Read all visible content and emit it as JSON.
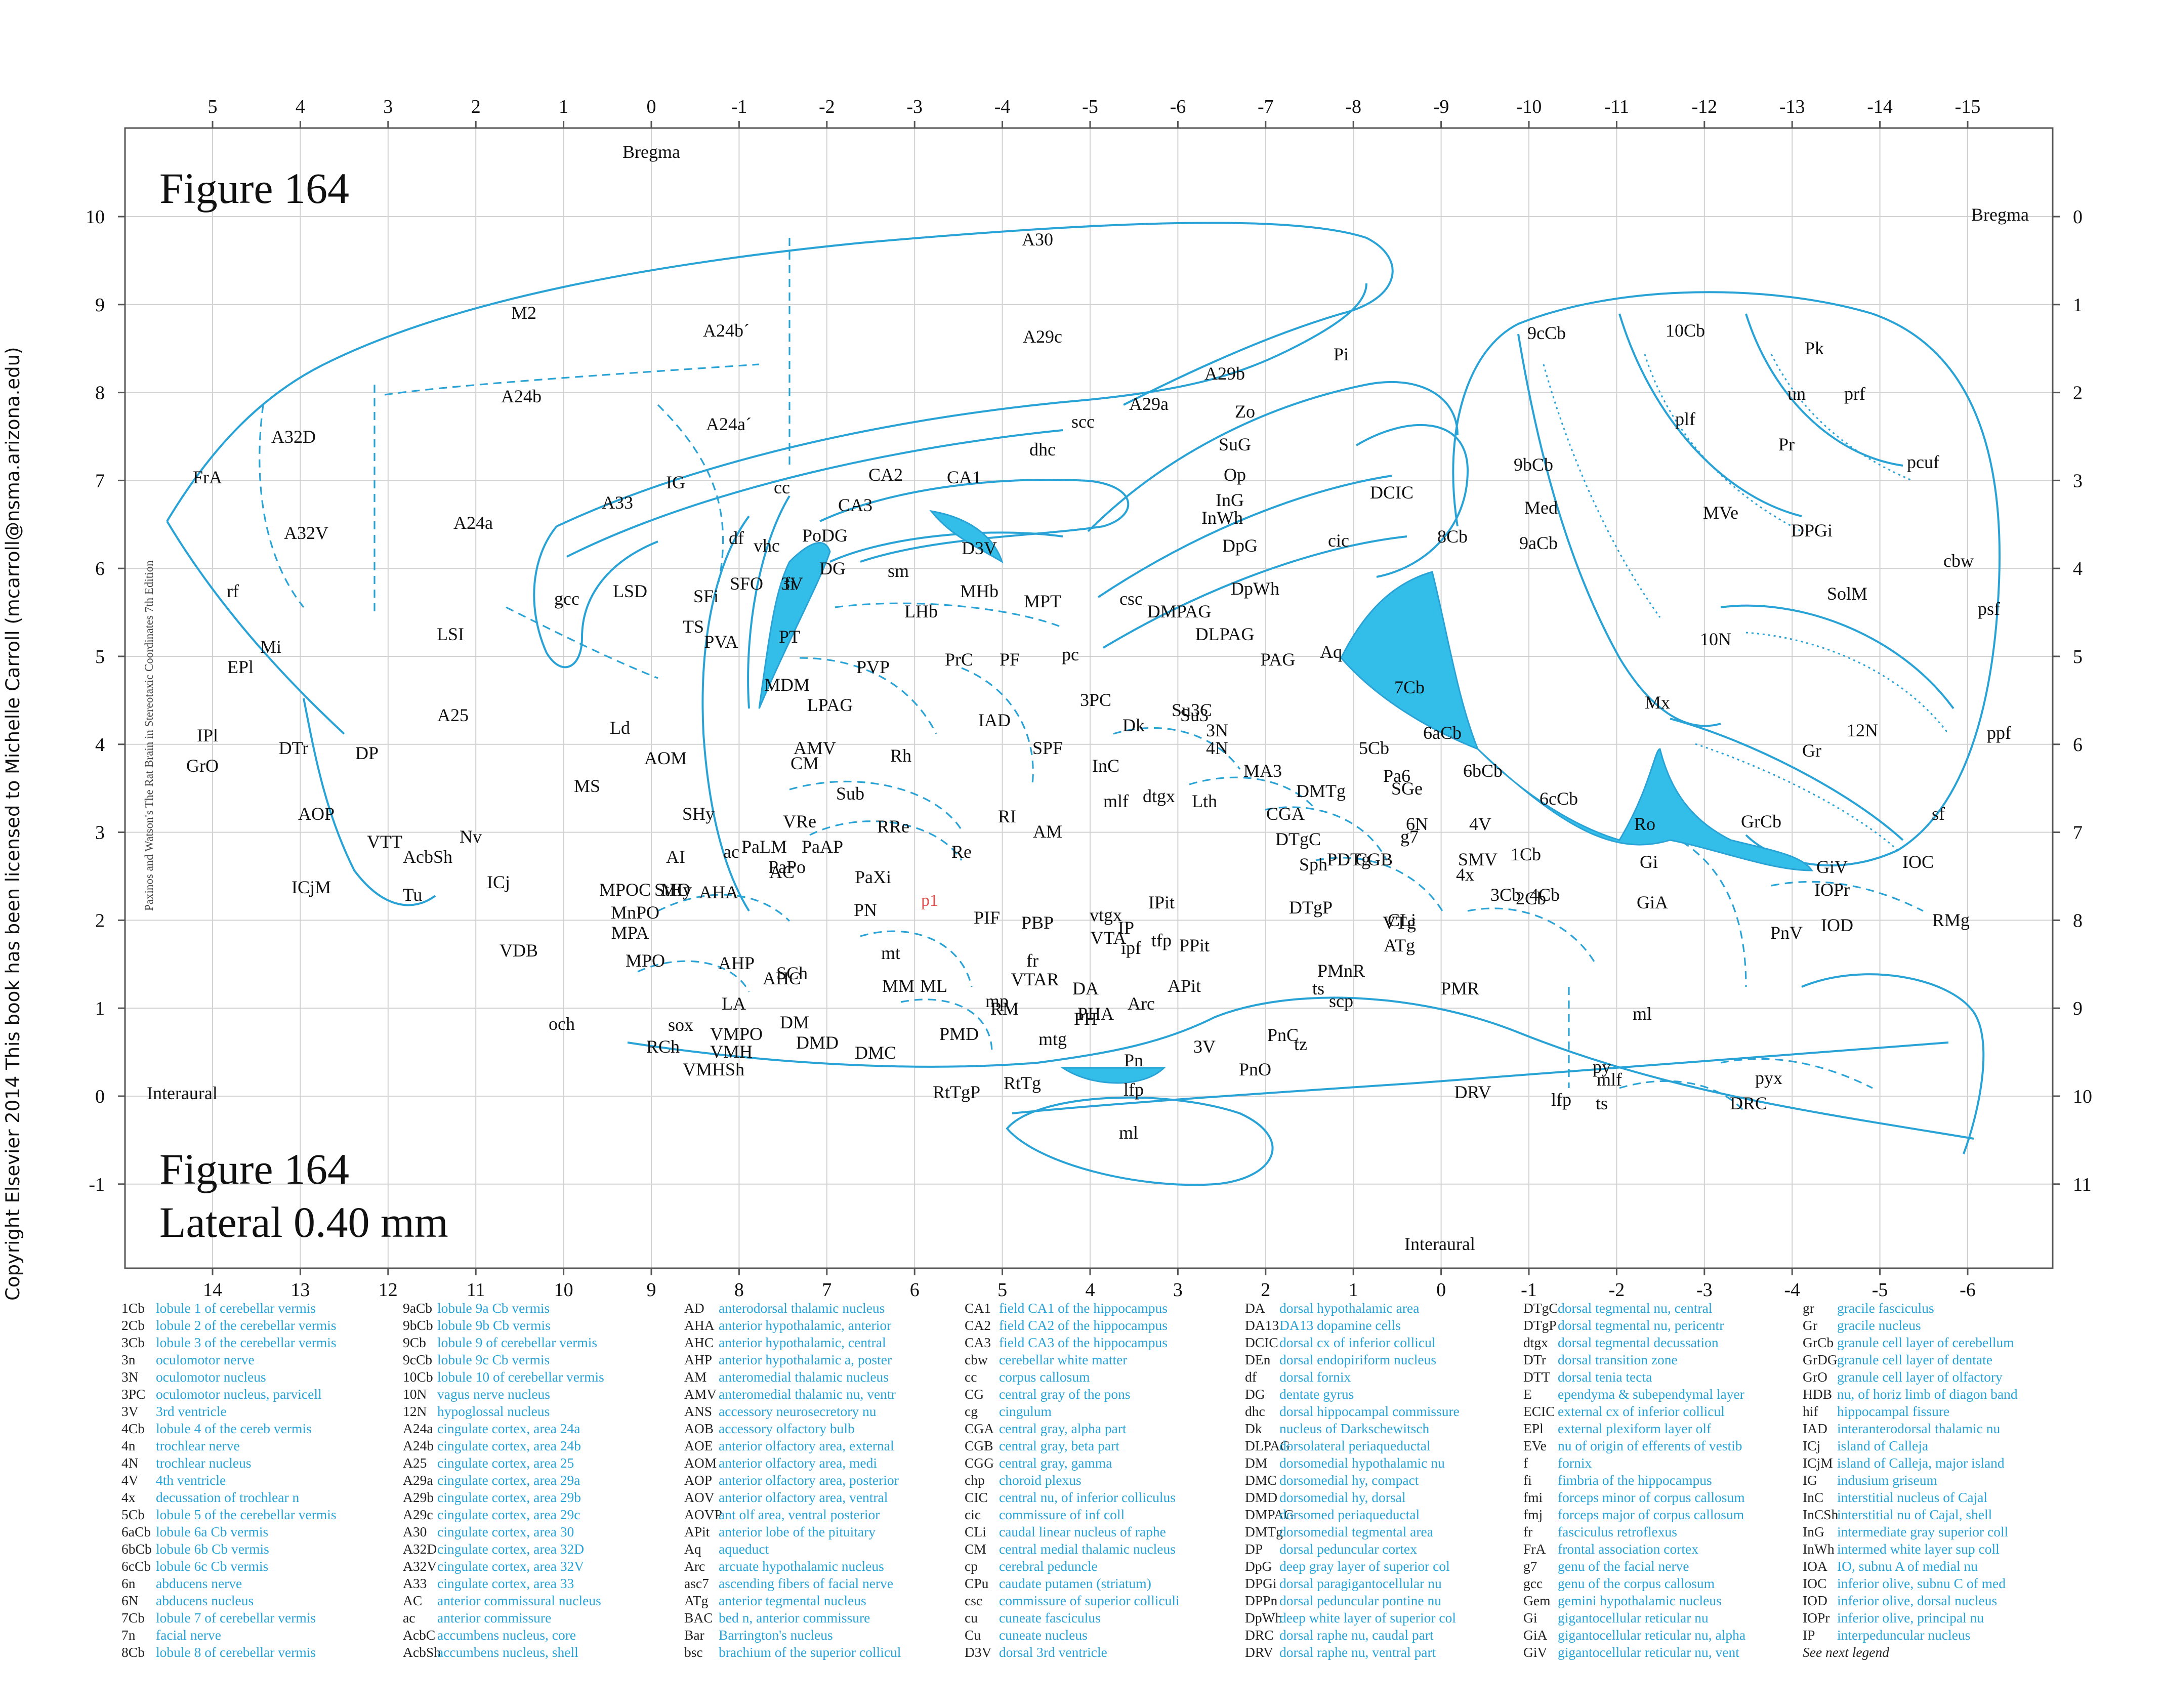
{
  "figure": {
    "title_top": "Figure 164",
    "title_bottom_1": "Figure 164",
    "title_bottom_2": "Lateral 0.40 mm",
    "edition_note": "Paxinos and Watson's The Rat Brain in Stereotaxic Coordinates    7th Edition",
    "copyright": "Copyright Elsevier 2014 This book has been licensed to Michelle Carroll (mcarroll@nsma.arizona.edu)"
  },
  "axes": {
    "top_ticks": [
      "5",
      "4",
      "3",
      "2",
      "1",
      "0",
      "-1",
      "-2",
      "-3",
      "-4",
      "-5",
      "-6",
      "-7",
      "-8",
      "-9",
      "-10",
      "-11",
      "-12",
      "-13",
      "-14",
      "-15"
    ],
    "bottom_ticks": [
      "14",
      "13",
      "12",
      "11",
      "10",
      "9",
      "8",
      "7",
      "6",
      "5",
      "4",
      "3",
      "2",
      "1",
      "0",
      "-1",
      "-2",
      "-3",
      "-4",
      "-5",
      "-6"
    ],
    "left_ticks": [
      "10",
      "9",
      "8",
      "7",
      "6",
      "5",
      "4",
      "3",
      "2",
      "1",
      "0",
      "-1"
    ],
    "right_ticks": [
      "0",
      "1",
      "2",
      "3",
      "4",
      "5",
      "6",
      "7",
      "8",
      "9",
      "10",
      "11"
    ],
    "labels": {
      "bregma_top": "Bregma",
      "bregma_right": "Bregma",
      "interaural_left": "Interaural",
      "interaural_bottom": "Interaural"
    }
  },
  "colors": {
    "line": "#29a3d6",
    "ventricle_fill": "#33bde9",
    "grid": "#cfcfcf",
    "frame": "#555555"
  },
  "region_labels": [
    "FrA",
    "M2",
    "A24b´",
    "A30",
    "A29c",
    "A32D",
    "A24b",
    "A24a´",
    "A29b",
    "A29a",
    "scc",
    "dhc",
    "Pi",
    "Zo",
    "SuG",
    "Op",
    "InG",
    "InWh",
    "DpG",
    "DpWh",
    "DMPAG",
    "DLPAG",
    "PAG",
    "cic",
    "DCIC",
    "Aq",
    "A33",
    "IG",
    "cc",
    "CA2",
    "CA1",
    "CA3",
    "PoDG",
    "DG",
    "sm",
    "D3V",
    "MHb",
    "LHb",
    "MPT",
    "csc",
    "pc",
    "A32V",
    "A24a",
    "rf",
    "gcc",
    "LSD",
    "df",
    "vhc",
    "SFO",
    "3V",
    "fi",
    "SFi",
    "TS",
    "PVA",
    "PT",
    "MDM",
    "PVP",
    "PrC",
    "PF",
    "IAD",
    "LPAG",
    "3PC",
    "Su3C",
    "Su3",
    "3N",
    "4N",
    "MA3",
    "Dk",
    "InC",
    "mlf",
    "dtgx",
    "Lth",
    "SPF",
    "RI",
    "AM",
    "AMV",
    "CM",
    "Rh",
    "Sub",
    "RRe",
    "Re",
    "VRe",
    "PaXi",
    "PaAP",
    "PaLM",
    "PaPo",
    "AC",
    "ac",
    "SHy",
    "AI",
    "StHy",
    "MO",
    "Mi",
    "EPl",
    "IPl",
    "GrO",
    "DTr",
    "DP",
    "A25",
    "LSI",
    "Ld",
    "MS",
    "AOM",
    "AOP",
    "VTT",
    "ICjM",
    "Nv",
    "AcbSh",
    "ICj",
    "Tu",
    "VDB",
    "MPOC",
    "MnPO",
    "MPA",
    "MPO",
    "AHA",
    "AHP",
    "AHC",
    "LA",
    "VMPO",
    "SCh",
    "och",
    "sox",
    "RCh",
    "VMHSh",
    "VMH",
    "DM",
    "DMD",
    "DMC",
    "PMD",
    "mt",
    "MM",
    "ML",
    "mp",
    "RM",
    "VTAR",
    "PHA",
    "mtg",
    "PH",
    "DA",
    "fr",
    "PBP",
    "PIF",
    "PN",
    "VTA",
    "vtgx",
    "IP",
    "ipf",
    "tfp",
    "PPit",
    "IPit",
    "APit",
    "Arc",
    "3V",
    "Pn",
    "lfp",
    "ml",
    "RtTgP",
    "RtTg",
    "PnO",
    "PnC",
    "ts",
    "tz",
    "PMnR",
    "scp",
    "ATg",
    "PMR",
    "VTg",
    "CLi",
    "DRV",
    "DTgP",
    "DTgC",
    "Sph",
    "PDTg",
    "CGB",
    "CGA",
    "DMTg",
    "SGe",
    "6N",
    "Pa6",
    "g7",
    "4V",
    "SMV",
    "4x",
    "1Cb",
    "2Cb",
    "3Cb",
    "4Cb",
    "5Cb",
    "6aCb",
    "6bCb",
    "6cCb",
    "7Cb",
    "8Cb",
    "9aCb",
    "9bCb",
    "9cCb",
    "10Cb",
    "Pk",
    "prf",
    "pcuf",
    "cbw",
    "psf",
    "ppf",
    "sf",
    "GrCb",
    "un",
    "plf",
    "Med",
    "MVe",
    "Pr",
    "DPGi",
    "SolM",
    "10N",
    "12N",
    "Gr",
    "Mx",
    "Ro",
    "Gi",
    "GiA",
    "GiV",
    "IOPr",
    "IOD",
    "IOC",
    "RMg",
    "PnV",
    "ml",
    "py",
    "mlf",
    "ts",
    "pyx",
    "DRC",
    "lfp"
  ],
  "legend_columns": [
    [
      [
        "1Cb",
        "lobule 1 of cerebellar vermis"
      ],
      [
        "2Cb",
        "lobule 2 of the cerebellar vermis"
      ],
      [
        "3Cb",
        "lobule 3 of the cerebellar vermis"
      ],
      [
        "3n",
        "oculomotor nerve"
      ],
      [
        "3N",
        "oculomotor nucleus"
      ],
      [
        "3PC",
        "oculomotor nucleus, parvicell"
      ],
      [
        "3V",
        "3rd ventricle"
      ],
      [
        "4Cb",
        "lobule 4 of the cereb vermis"
      ],
      [
        "4n",
        "trochlear nerve"
      ],
      [
        "4N",
        "trochlear nucleus"
      ],
      [
        "4V",
        "4th ventricle"
      ],
      [
        "4x",
        "decussation of trochlear n"
      ],
      [
        "5Cb",
        "lobule 5 of the cerebellar vermis"
      ],
      [
        "6aCb",
        "lobule 6a Cb vermis"
      ],
      [
        "6bCb",
        "lobule 6b Cb vermis"
      ],
      [
        "6cCb",
        "lobule 6c Cb vermis"
      ],
      [
        "6n",
        "abducens nerve"
      ],
      [
        "6N",
        "abducens nucleus"
      ],
      [
        "7Cb",
        "lobule 7 of cerebellar vermis"
      ],
      [
        "7n",
        "facial nerve"
      ],
      [
        "8Cb",
        "lobule 8 of cerebellar vermis"
      ]
    ],
    [
      [
        "9aCb",
        "lobule 9a Cb vermis"
      ],
      [
        "9bCb",
        "lobule 9b Cb vermis"
      ],
      [
        "9Cb",
        "lobule 9 of cerebellar vermis"
      ],
      [
        "9cCb",
        "lobule 9c Cb vermis"
      ],
      [
        "10Cb",
        "lobule 10 of cerebellar vermis"
      ],
      [
        "10N",
        "vagus nerve nucleus"
      ],
      [
        "12N",
        "hypoglossal nucleus"
      ],
      [
        "A24a",
        "cingulate cortex, area 24a"
      ],
      [
        "A24b",
        "cingulate cortex, area 24b"
      ],
      [
        "A25",
        "cingulate cortex, area 25"
      ],
      [
        "A29a",
        "cingulate cortex, area 29a"
      ],
      [
        "A29b",
        "cingulate cortex, area 29b"
      ],
      [
        "A29c",
        "cingulate cortex, area 29c"
      ],
      [
        "A30",
        "cingulate cortex, area 30"
      ],
      [
        "A32D",
        "cingulate cortex, area 32D"
      ],
      [
        "A32V",
        "cingulate cortex, area 32V"
      ],
      [
        "A33",
        "cingulate cortex, area 33"
      ],
      [
        "AC",
        "anterior commissural nucleus"
      ],
      [
        "ac",
        "anterior commissure"
      ],
      [
        "AcbC",
        "accumbens nucleus, core"
      ],
      [
        "AcbSh",
        "accumbens nucleus, shell"
      ]
    ],
    [
      [
        "AD",
        "anterodorsal thalamic nucleus"
      ],
      [
        "AHA",
        "anterior hypothalamic, anterior"
      ],
      [
        "AHC",
        "anterior hypothalamic, central"
      ],
      [
        "AHP",
        "anterior hypothalamic a, poster"
      ],
      [
        "AM",
        "anteromedial thalamic nucleus"
      ],
      [
        "AMV",
        "anteromedial thalamic nu, ventr"
      ],
      [
        "ANS",
        "accessory neurosecretory nu"
      ],
      [
        "AOB",
        "accessory olfactory bulb"
      ],
      [
        "AOE",
        "anterior olfactory area, external"
      ],
      [
        "AOM",
        "anterior olfactory area, medi"
      ],
      [
        "AOP",
        "anterior olfactory area, posterior"
      ],
      [
        "AOV",
        "anterior olfactory area, ventral"
      ],
      [
        "AOVP",
        "ant olf area, ventral posterior"
      ],
      [
        "APit",
        "anterior lobe of the pituitary"
      ],
      [
        "Aq",
        "aqueduct"
      ],
      [
        "Arc",
        "arcuate hypothalamic nucleus"
      ],
      [
        "asc7",
        "ascending fibers of facial nerve"
      ],
      [
        "ATg",
        "anterior tegmental nucleus"
      ],
      [
        "BAC",
        "bed n, anterior commissure"
      ],
      [
        "Bar",
        "Barrington's nucleus"
      ],
      [
        "bsc",
        "brachium of the superior collicul"
      ]
    ],
    [
      [
        "CA1",
        "field CA1 of the hippocampus"
      ],
      [
        "CA2",
        "field CA2 of the hippocampus"
      ],
      [
        "CA3",
        "field CA3 of the hippocampus"
      ],
      [
        "cbw",
        "cerebellar white matter"
      ],
      [
        "cc",
        "corpus callosum"
      ],
      [
        "CG",
        "central gray of the pons"
      ],
      [
        "cg",
        "cingulum"
      ],
      [
        "CGA",
        "central gray, alpha part"
      ],
      [
        "CGB",
        "central gray, beta part"
      ],
      [
        "CGG",
        "central gray, gamma"
      ],
      [
        "chp",
        "choroid plexus"
      ],
      [
        "CIC",
        "central nu, of inferior colliculus"
      ],
      [
        "cic",
        "commissure of inf coll"
      ],
      [
        "CLi",
        "caudal linear nucleus of raphe"
      ],
      [
        "CM",
        "central medial thalamic nucleus"
      ],
      [
        "cp",
        "cerebral peduncle"
      ],
      [
        "CPu",
        "caudate putamen (striatum)"
      ],
      [
        "csc",
        "commissure of superior colliculi"
      ],
      [
        "cu",
        "cuneate fasciculus"
      ],
      [
        "Cu",
        "cuneate nucleus"
      ],
      [
        "D3V",
        "dorsal 3rd ventricle"
      ]
    ],
    [
      [
        "DA",
        "dorsal hypothalamic area"
      ],
      [
        "DA13",
        "DA13 dopamine cells"
      ],
      [
        "DCIC",
        "dorsal cx of inferior collicul"
      ],
      [
        "DEn",
        "dorsal endopiriform nucleus"
      ],
      [
        "df",
        "dorsal fornix"
      ],
      [
        "DG",
        "dentate gyrus"
      ],
      [
        "dhc",
        "dorsal hippocampal commissure"
      ],
      [
        "Dk",
        "nucleus of Darkschewitsch"
      ],
      [
        "DLPAG",
        "dorsolateral periaqueductal"
      ],
      [
        "DM",
        "dorsomedial hypothalamic nu"
      ],
      [
        "DMC",
        "dorsomedial hy, compact"
      ],
      [
        "DMD",
        "dorsomedial hy, dorsal"
      ],
      [
        "DMPAG",
        "dorsomed periaqueductal"
      ],
      [
        "DMTg",
        "dorsomedial tegmental area"
      ],
      [
        "DP",
        "dorsal peduncular cortex"
      ],
      [
        "DpG",
        "deep gray layer of superior col"
      ],
      [
        "DPGi",
        "dorsal paragigantocellular nu"
      ],
      [
        "DPPn",
        "dorsal peduncular pontine nu"
      ],
      [
        "DpWh",
        "deep white layer of superior col"
      ],
      [
        "DRC",
        "dorsal raphe nu, caudal part"
      ],
      [
        "DRV",
        "dorsal raphe nu, ventral part"
      ]
    ],
    [
      [
        "DTgC",
        "dorsal tegmental nu, central"
      ],
      [
        "DTgP",
        "dorsal tegmental nu, pericentr"
      ],
      [
        "dtgx",
        "dorsal tegmental decussation"
      ],
      [
        "DTr",
        "dorsal transition zone"
      ],
      [
        "DTT",
        "dorsal tenia tecta"
      ],
      [
        "E",
        "ependyma & subependymal layer"
      ],
      [
        "ECIC",
        "external cx of inferior collicul"
      ],
      [
        "EPl",
        "external plexiform layer olf"
      ],
      [
        "EVe",
        "nu of origin of efferents of vestib"
      ],
      [
        "f",
        "fornix"
      ],
      [
        "fi",
        "fimbria of the hippocampus"
      ],
      [
        "fmi",
        "forceps minor of corpus callosum"
      ],
      [
        "fmj",
        "forceps major of corpus callosum"
      ],
      [
        "fr",
        "fasciculus retroflexus"
      ],
      [
        "FrA",
        "frontal association cortex"
      ],
      [
        "g7",
        "genu of the facial nerve"
      ],
      [
        "gcc",
        "genu of the corpus callosum"
      ],
      [
        "Gem",
        "gemini hypothalamic nucleus"
      ],
      [
        "Gi",
        "gigantocellular reticular nu"
      ],
      [
        "GiA",
        "gigantocellular reticular nu, alpha"
      ],
      [
        "GiV",
        "gigantocellular reticular nu, vent"
      ]
    ],
    [
      [
        "gr",
        "gracile fasciculus"
      ],
      [
        "Gr",
        "gracile nucleus"
      ],
      [
        "GrCb",
        "granule cell layer of cerebellum"
      ],
      [
        "GrDG",
        "granule cell layer of dentate"
      ],
      [
        "GrO",
        "granule cell layer of olfactory"
      ],
      [
        "HDB",
        "nu, of horiz limb of diagon band"
      ],
      [
        "hif",
        "hippocampal fissure"
      ],
      [
        "IAD",
        "interanterodorsal thalamic nu"
      ],
      [
        "ICj",
        "island of Calleja"
      ],
      [
        "ICjM",
        "island of Calleja, major island"
      ],
      [
        "IG",
        "indusium griseum"
      ],
      [
        "InC",
        "interstitial nucleus of Cajal"
      ],
      [
        "InCSh",
        "interstitial nu of Cajal, shell"
      ],
      [
        "InG",
        "intermediate gray superior coll"
      ],
      [
        "InWh",
        "intermed white layer sup coll"
      ],
      [
        "IOA",
        "IO, subnu A of medial nu"
      ],
      [
        "IOC",
        "inferior olive, subnu C of med"
      ],
      [
        "IOD",
        "inferior olive, dorsal nucleus"
      ],
      [
        "IOPr",
        "inferior olive, principal nu"
      ],
      [
        "IP",
        "interpeduncular nucleus"
      ]
    ]
  ],
  "legend_next": "See next legend"
}
